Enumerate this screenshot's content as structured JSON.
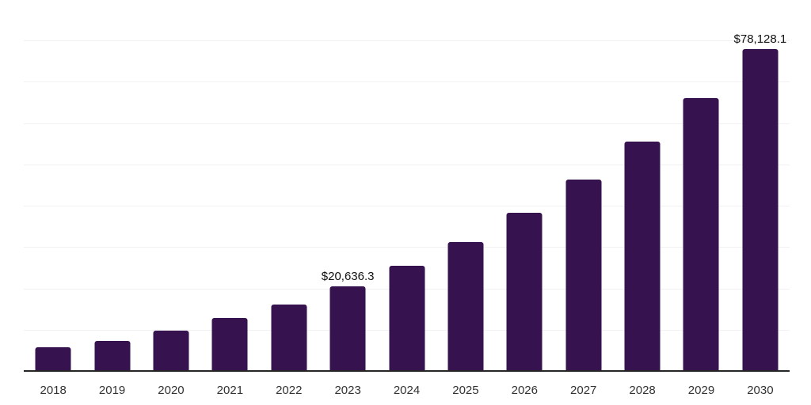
{
  "chart_data": {
    "type": "bar",
    "title": "",
    "xlabel": "",
    "ylabel": "",
    "categories": [
      "2018",
      "2019",
      "2020",
      "2021",
      "2022",
      "2023",
      "2024",
      "2025",
      "2026",
      "2027",
      "2028",
      "2029",
      "2030"
    ],
    "values": [
      5900,
      7500,
      9900,
      12950,
      16250,
      20636.3,
      25600,
      31350,
      38450,
      46500,
      55700,
      66250,
      78128.1
    ],
    "labeled_points": [
      {
        "category": "2023",
        "label": "$20,636.3"
      },
      {
        "category": "2030",
        "label": "$78,128.1"
      }
    ],
    "ylim": [
      0,
      90000
    ],
    "gridline_step": 10000,
    "grid": "horizontal-only",
    "y_tick_labels_shown": false,
    "legend": "none"
  },
  "colors": {
    "bar": "#36134E",
    "gridline": "#F1F1F3",
    "axis_line": "#262626",
    "tick_label": "#333333",
    "value_label": "#111111",
    "background": "#FFFFFF"
  }
}
